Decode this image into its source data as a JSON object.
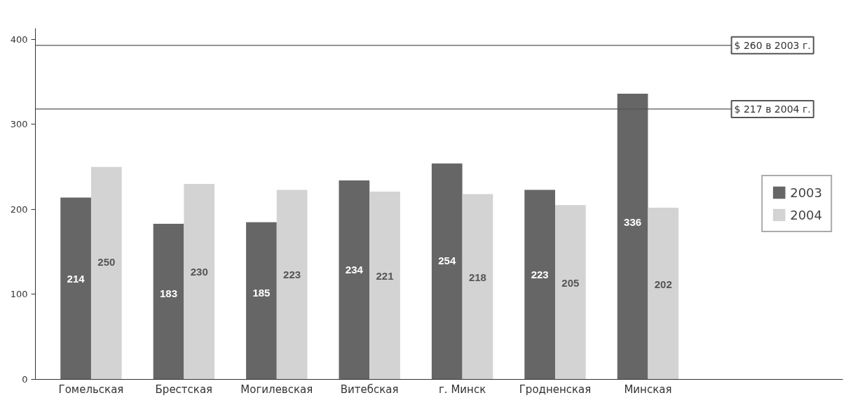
{
  "chart_data": {
    "type": "bar",
    "categories": [
      "Гомельская",
      "Брестская",
      "Могилевская",
      "Витебская",
      "г. Минск",
      "Гродненская",
      "Минская"
    ],
    "series": [
      {
        "name": "2003",
        "color": "#666666",
        "values": [
          214,
          183,
          185,
          234,
          254,
          223,
          336
        ]
      },
      {
        "name": "2004",
        "color": "#d3d3d3",
        "values": [
          250,
          230,
          223,
          221,
          218,
          205,
          202
        ]
      }
    ],
    "ylim": [
      0,
      413
    ],
    "yticks": [
      0,
      100,
      200,
      300,
      400
    ],
    "grid": false,
    "legend": "right",
    "data_labels": true,
    "ref_lines": [
      {
        "axis": "y",
        "value": 393,
        "label": "$ 260 в 2003 г.",
        "color": "#555555"
      },
      {
        "axis": "y",
        "value": 318,
        "label": "$ 217 в 2004 г.",
        "color": "#555555"
      }
    ]
  }
}
